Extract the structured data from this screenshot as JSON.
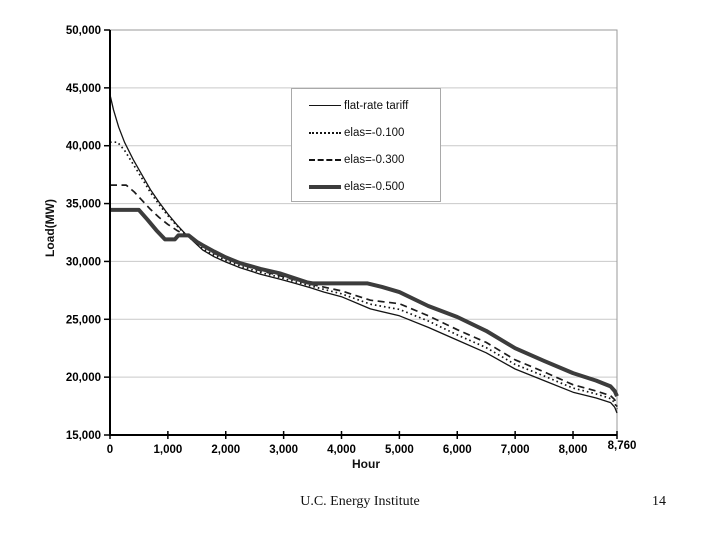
{
  "slide": {
    "footer_text": "U.C. Energy Institute",
    "page_number": "14"
  },
  "chart_data": {
    "type": "line",
    "title": "",
    "xlabel": "Hour",
    "ylabel": "Load(MW)",
    "xlim": [
      0,
      8760
    ],
    "ylim": [
      15000,
      50000
    ],
    "grid": "horizontal",
    "grid_values": [
      20000,
      25000,
      30000,
      35000,
      40000,
      45000
    ],
    "grid_color": "#c9c9c9",
    "axis_color": "#000000",
    "frame_color": "#9a9a9a",
    "legend_position": "inside-upper-right",
    "x_ticks": [
      {
        "value": 0,
        "label": "0"
      },
      {
        "value": 1000,
        "label": "1,000"
      },
      {
        "value": 2000,
        "label": "2,000"
      },
      {
        "value": 3000,
        "label": "3,000"
      },
      {
        "value": 4000,
        "label": "4,000"
      },
      {
        "value": 5000,
        "label": "5,000"
      },
      {
        "value": 6000,
        "label": "6,000"
      },
      {
        "value": 7000,
        "label": "7,000"
      },
      {
        "value": 8000,
        "label": "8,000"
      },
      {
        "value": 8760,
        "label": "8,760",
        "raised": true
      }
    ],
    "y_ticks": [
      {
        "value": 15000,
        "label": "15,000"
      },
      {
        "value": 20000,
        "label": "20,000"
      },
      {
        "value": 25000,
        "label": "25,000"
      },
      {
        "value": 30000,
        "label": "30,000"
      },
      {
        "value": 35000,
        "label": "35,000"
      },
      {
        "value": 40000,
        "label": "40,000"
      },
      {
        "value": 45000,
        "label": "45,000"
      },
      {
        "value": 50000,
        "label": "50,000"
      }
    ],
    "series": [
      {
        "name": "flat-rate tariff",
        "style": "thin-solid",
        "color": "#141414",
        "points": [
          [
            0,
            44400
          ],
          [
            60,
            43100
          ],
          [
            150,
            41600
          ],
          [
            250,
            40300
          ],
          [
            400,
            38800
          ],
          [
            550,
            37500
          ],
          [
            700,
            36200
          ],
          [
            850,
            35100
          ],
          [
            1000,
            34100
          ],
          [
            1150,
            33200
          ],
          [
            1300,
            32400
          ],
          [
            1450,
            31700
          ],
          [
            1600,
            31000
          ],
          [
            1800,
            30400
          ],
          [
            2000,
            29950
          ],
          [
            2250,
            29450
          ],
          [
            2600,
            28900
          ],
          [
            2950,
            28450
          ],
          [
            3200,
            28100
          ],
          [
            3450,
            27750
          ],
          [
            3700,
            27350
          ],
          [
            4000,
            26950
          ],
          [
            4500,
            25900
          ],
          [
            5000,
            25300
          ],
          [
            5500,
            24300
          ],
          [
            6000,
            23200
          ],
          [
            6500,
            22100
          ],
          [
            7000,
            20700
          ],
          [
            7500,
            19700
          ],
          [
            8000,
            18700
          ],
          [
            8400,
            18200
          ],
          [
            8650,
            17800
          ],
          [
            8720,
            17400
          ],
          [
            8760,
            16900
          ]
        ]
      },
      {
        "name": "elas=-0.100",
        "style": "dotted",
        "color": "#141414",
        "points": [
          [
            0,
            40300
          ],
          [
            130,
            40300
          ],
          [
            250,
            39600
          ],
          [
            400,
            38400
          ],
          [
            550,
            37200
          ],
          [
            700,
            35950
          ],
          [
            850,
            34900
          ],
          [
            1000,
            33950
          ],
          [
            1150,
            33100
          ],
          [
            1300,
            32350
          ],
          [
            1450,
            31750
          ],
          [
            1600,
            31100
          ],
          [
            1800,
            30550
          ],
          [
            2000,
            30100
          ],
          [
            2250,
            29600
          ],
          [
            2600,
            29050
          ],
          [
            2950,
            28600
          ],
          [
            3450,
            27900
          ],
          [
            4000,
            27200
          ],
          [
            4500,
            26300
          ],
          [
            5000,
            25850
          ],
          [
            5500,
            24850
          ],
          [
            6000,
            23650
          ],
          [
            6500,
            22550
          ],
          [
            7000,
            21100
          ],
          [
            7500,
            20100
          ],
          [
            8000,
            19050
          ],
          [
            8400,
            18550
          ],
          [
            8650,
            18150
          ],
          [
            8720,
            17800
          ],
          [
            8760,
            17250
          ]
        ]
      },
      {
        "name": "elas=-0.300",
        "style": "dashed",
        "color": "#1c1c1c",
        "points": [
          [
            0,
            36600
          ],
          [
            280,
            36600
          ],
          [
            420,
            36000
          ],
          [
            550,
            35300
          ],
          [
            700,
            34500
          ],
          [
            850,
            33800
          ],
          [
            1000,
            33200
          ],
          [
            1150,
            32700
          ],
          [
            1300,
            32300
          ],
          [
            1450,
            31900
          ],
          [
            1600,
            31300
          ],
          [
            1800,
            30700
          ],
          [
            2000,
            30250
          ],
          [
            2250,
            29750
          ],
          [
            2600,
            29200
          ],
          [
            2950,
            28750
          ],
          [
            3450,
            28050
          ],
          [
            4000,
            27450
          ],
          [
            4500,
            26650
          ],
          [
            5000,
            26350
          ],
          [
            5500,
            25300
          ],
          [
            6000,
            24100
          ],
          [
            6500,
            23000
          ],
          [
            7000,
            21500
          ],
          [
            7500,
            20450
          ],
          [
            8000,
            19350
          ],
          [
            8400,
            18800
          ],
          [
            8650,
            18400
          ],
          [
            8720,
            18050
          ],
          [
            8760,
            17450
          ]
        ]
      },
      {
        "name": "elas=-0.500",
        "style": "thick-solid",
        "color": "#3c3c3c",
        "points": [
          [
            0,
            34450
          ],
          [
            500,
            34450
          ],
          [
            650,
            33600
          ],
          [
            800,
            32700
          ],
          [
            950,
            31900
          ],
          [
            1120,
            31900
          ],
          [
            1180,
            32250
          ],
          [
            1360,
            32250
          ],
          [
            1500,
            31700
          ],
          [
            1600,
            31400
          ],
          [
            1800,
            30850
          ],
          [
            2000,
            30350
          ],
          [
            2250,
            29850
          ],
          [
            2600,
            29350
          ],
          [
            2950,
            28950
          ],
          [
            3400,
            28200
          ],
          [
            3500,
            28100
          ],
          [
            4450,
            28100
          ],
          [
            4700,
            27800
          ],
          [
            5000,
            27350
          ],
          [
            5500,
            26150
          ],
          [
            6000,
            25200
          ],
          [
            6500,
            24000
          ],
          [
            7000,
            22500
          ],
          [
            7500,
            21400
          ],
          [
            8000,
            20350
          ],
          [
            8400,
            19700
          ],
          [
            8650,
            19200
          ],
          [
            8720,
            18800
          ],
          [
            8760,
            18350
          ]
        ]
      }
    ]
  }
}
